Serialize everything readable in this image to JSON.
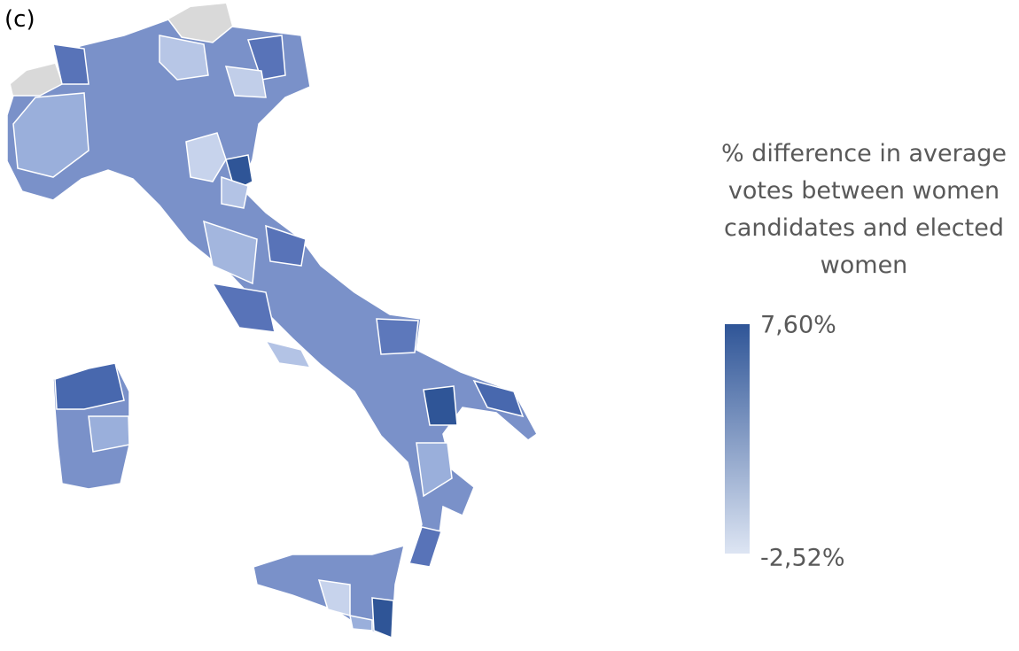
{
  "panel_label": "(c)",
  "legend": {
    "title_lines": [
      "% difference in average",
      "votes between women",
      "candidates and elected",
      "women"
    ],
    "max": {
      "value": 7.6,
      "label": "7,60%"
    },
    "min": {
      "value": -2.52,
      "label": "-2,52%"
    },
    "color_high": "#2f5597",
    "color_low": "#dde5f3"
  }
}
